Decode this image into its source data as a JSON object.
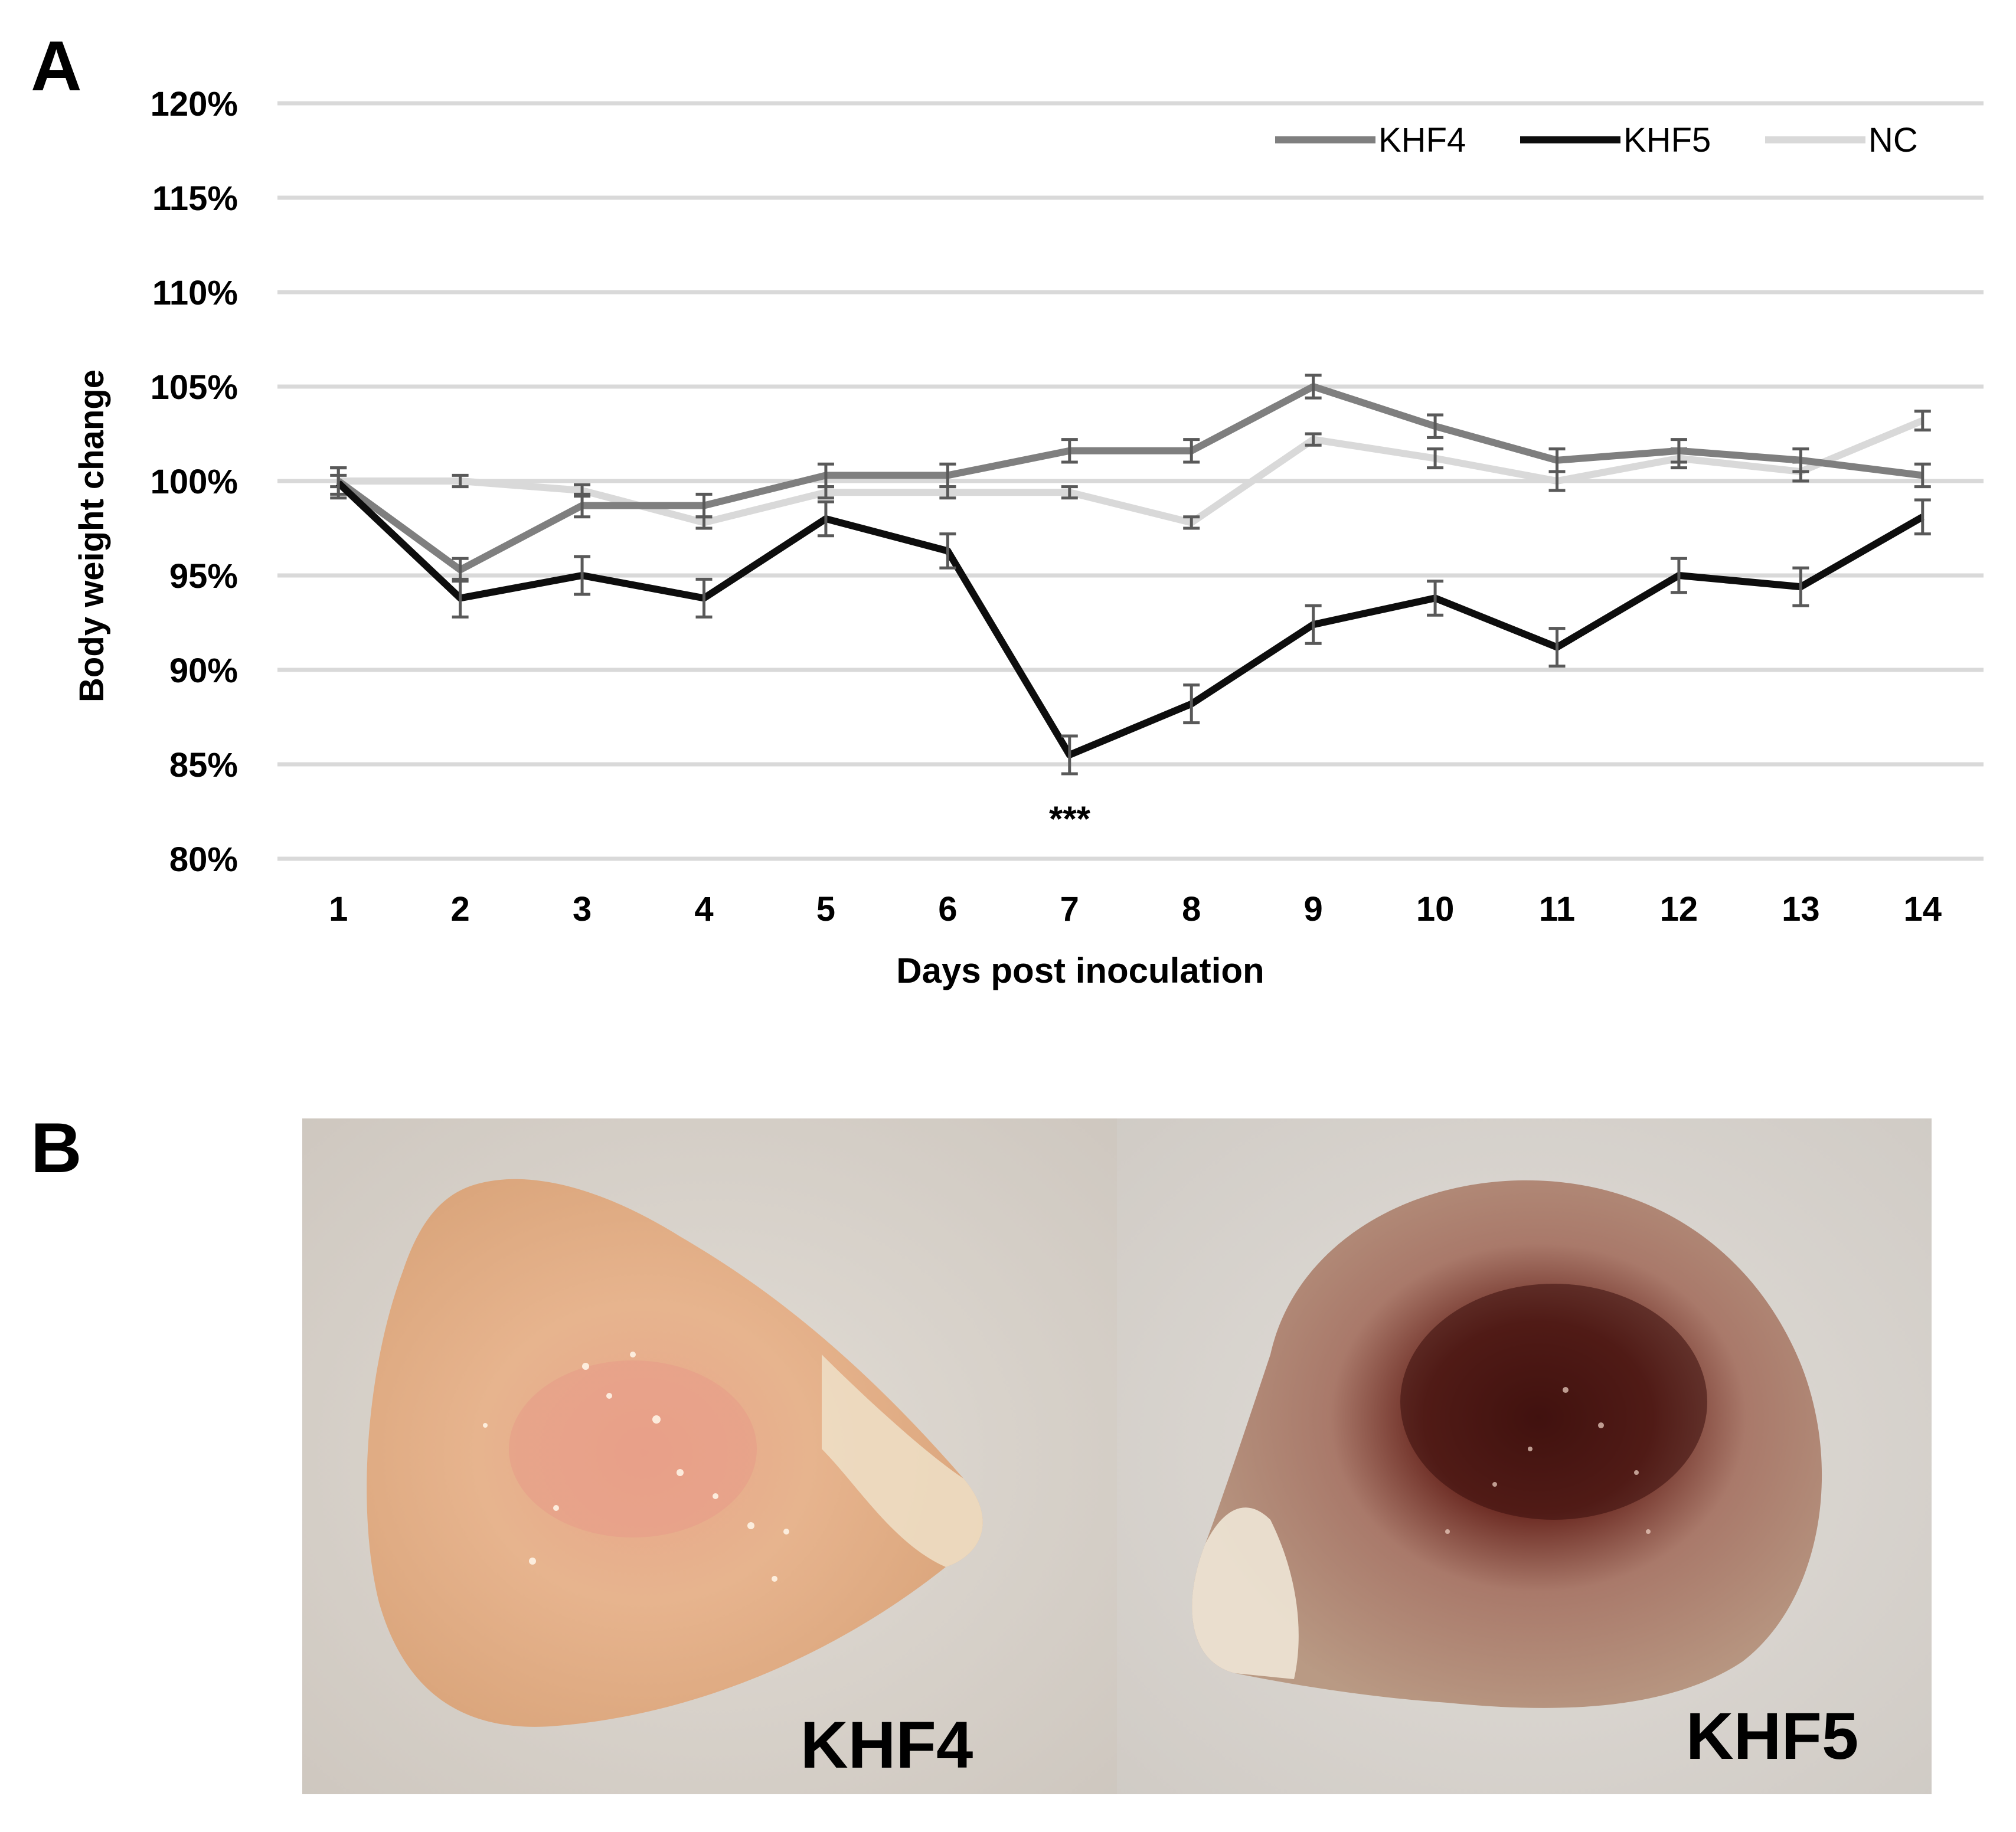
{
  "panels": {
    "a": "A",
    "b": "B"
  },
  "chart_data": {
    "type": "line",
    "xlabel": "Days post inoculation",
    "ylabel": "Body weight change",
    "categories": [
      "1",
      "2",
      "3",
      "4",
      "5",
      "6",
      "7",
      "8",
      "9",
      "10",
      "11",
      "12",
      "13",
      "14"
    ],
    "ylim": [
      80,
      120
    ],
    "yticks": [
      "80%",
      "85%",
      "90%",
      "95%",
      "100%",
      "105%",
      "110%",
      "115%",
      "120%"
    ],
    "ytick_values": [
      80,
      85,
      90,
      95,
      100,
      105,
      110,
      115,
      120
    ],
    "grid": true,
    "legend_position": "top-right",
    "series": [
      {
        "name": "KHF4",
        "color": "#7f7f7f",
        "values": [
          100,
          95.3,
          98.7,
          98.7,
          100.3,
          100.3,
          101.6,
          101.6,
          105,
          102.9,
          101.1,
          101.6,
          101.1,
          100.3
        ],
        "errors": [
          0.7,
          0.6,
          0.6,
          0.6,
          0.6,
          0.6,
          0.6,
          0.6,
          0.6,
          0.6,
          0.6,
          0.6,
          0.6,
          0.6
        ]
      },
      {
        "name": "KHF5",
        "color": "#0d0d0d",
        "values": [
          99.9,
          93.8,
          95,
          93.8,
          98,
          96.3,
          85.5,
          88.2,
          92.4,
          93.8,
          91.2,
          95,
          94.4,
          98.1
        ],
        "errors": [
          0.8,
          1,
          1,
          1,
          0.9,
          0.9,
          1,
          1,
          1,
          0.9,
          1,
          0.9,
          1,
          0.9
        ]
      },
      {
        "name": "NC",
        "color": "#d9d9d9",
        "values": [
          100,
          100,
          99.5,
          97.8,
          99.4,
          99.4,
          99.4,
          97.8,
          102.2,
          101.2,
          100,
          101.2,
          100.5,
          103.2
        ],
        "errors": [
          0.3,
          0.3,
          0.3,
          0.3,
          0.3,
          0.3,
          0.3,
          0.3,
          0.3,
          0.5,
          0.5,
          0.5,
          0.5,
          0.5
        ]
      }
    ],
    "annotations": [
      {
        "text": "***",
        "x": "7"
      }
    ]
  },
  "photos": [
    {
      "label": "KHF4"
    },
    {
      "label": "KHF5"
    }
  ]
}
